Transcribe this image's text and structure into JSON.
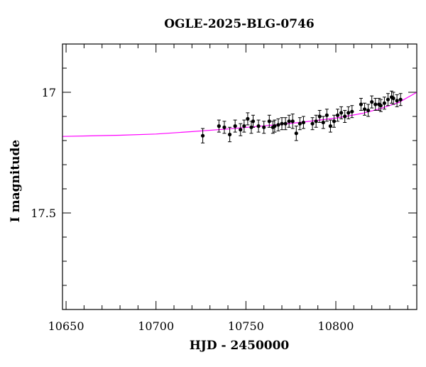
{
  "chart_data": {
    "type": "scatter",
    "title": "OGLE-2025-BLG-0746",
    "xlabel": "HJD - 2450000",
    "ylabel": "I magnitude",
    "xlim": [
      10648,
      10845
    ],
    "ylim": [
      17.9,
      16.8
    ],
    "y_inverted": true,
    "grid": false,
    "x_ticks": [
      10650,
      10700,
      10750,
      10800
    ],
    "x_tick_labels": [
      "10650",
      "10700",
      "10750",
      "10800"
    ],
    "y_ticks": [
      17.0,
      17.5
    ],
    "y_tick_labels": [
      "17",
      "17.5"
    ],
    "colors": {
      "points": "#000000",
      "model": "#ff00ff",
      "axes": "#000000"
    },
    "series": [
      {
        "type": "scatter",
        "x": [
          10726,
          10735,
          10738,
          10741,
          10744,
          10747,
          10749,
          10751,
          10753,
          10754,
          10757,
          10760,
          10763,
          10765,
          10766,
          10768,
          10770,
          10772,
          10774,
          10776,
          10778,
          10780,
          10782,
          10787,
          10789,
          10791,
          10793,
          10795,
          10797,
          10799,
          10801,
          10803,
          10805,
          10807,
          10809,
          10814,
          10816,
          10818,
          10820,
          10822,
          10824,
          10825,
          10827,
          10829,
          10831,
          10832,
          10834,
          10836
        ],
        "y": [
          17.18,
          17.14,
          17.145,
          17.175,
          17.14,
          17.155,
          17.14,
          17.11,
          17.145,
          17.12,
          17.14,
          17.145,
          17.12,
          17.145,
          17.14,
          17.135,
          17.13,
          17.13,
          17.12,
          17.12,
          17.17,
          17.13,
          17.125,
          17.13,
          17.12,
          17.1,
          17.125,
          17.095,
          17.14,
          17.12,
          17.095,
          17.085,
          17.1,
          17.085,
          17.08,
          17.05,
          17.07,
          17.075,
          17.04,
          17.05,
          17.05,
          17.055,
          17.045,
          17.03,
          17.02,
          17.025,
          17.035,
          17.03
        ],
        "yerr": [
          0.03,
          0.025,
          0.025,
          0.03,
          0.025,
          0.025,
          0.025,
          0.025,
          0.025,
          0.025,
          0.025,
          0.025,
          0.025,
          0.025,
          0.025,
          0.025,
          0.025,
          0.025,
          0.025,
          0.03,
          0.03,
          0.025,
          0.025,
          0.025,
          0.025,
          0.025,
          0.025,
          0.025,
          0.025,
          0.025,
          0.025,
          0.025,
          0.025,
          0.025,
          0.025,
          0.025,
          0.025,
          0.025,
          0.025,
          0.025,
          0.025,
          0.025,
          0.025,
          0.025,
          0.025,
          0.025,
          0.025,
          0.025
        ]
      },
      {
        "type": "line",
        "x": [
          10648,
          10680,
          10700,
          10720,
          10740,
          10760,
          10780,
          10800,
          10815,
          10825,
          10835,
          10845
        ],
        "y": [
          17.183,
          17.178,
          17.173,
          17.163,
          17.152,
          17.139,
          17.125,
          17.107,
          17.087,
          17.067,
          17.042,
          17.0
        ]
      }
    ]
  }
}
